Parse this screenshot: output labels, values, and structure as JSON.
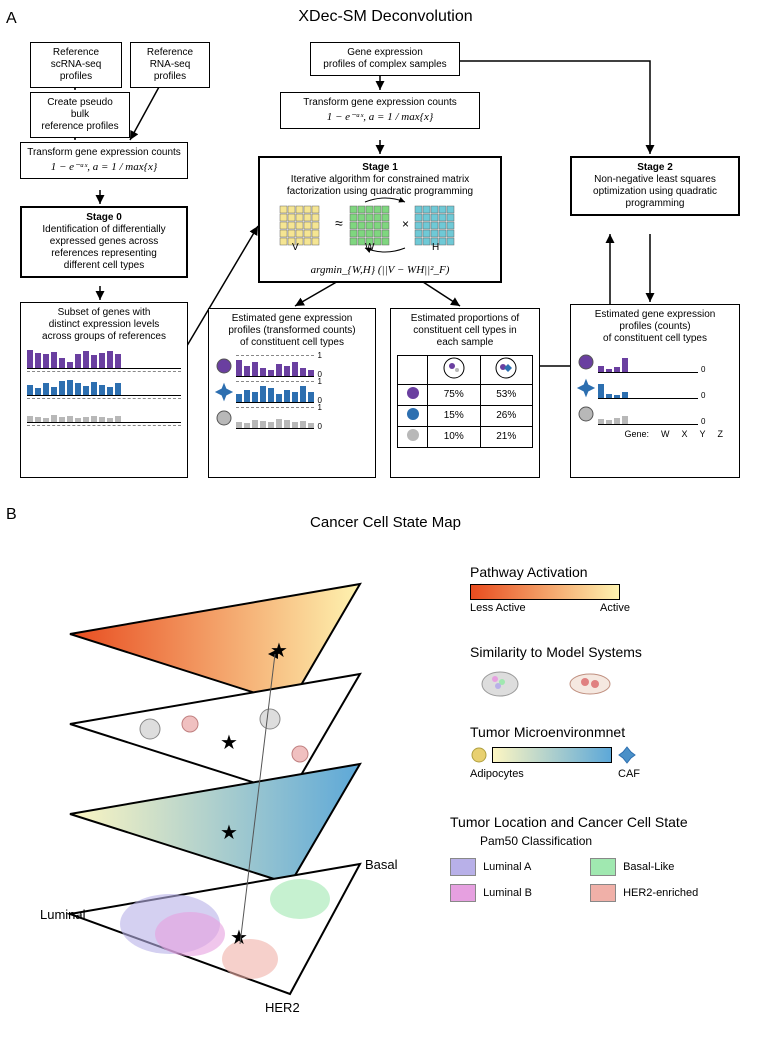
{
  "panelA_label": "A",
  "panelB_label": "B",
  "titleA": "XDec-SM Deconvolution",
  "titleB": "Cancer Cell State Map",
  "boxes": {
    "ref_scrna": "Reference\nscRNA-seq profiles",
    "create_pseudo": "Create pseudo bulk\nreference profiles",
    "ref_rna": "Reference\nRNA-seq profiles",
    "transform_left_title": "Transform gene expression counts",
    "transform_formula": "1 − e⁻ᵃˣ, a = 1 / max{x}",
    "stage0_title": "Stage 0",
    "stage0_body": "Identification of differentially\nexpressed genes across\nreferences representing\ndifferent cell types",
    "subset_title": "Subset of genes with\ndistinct expression levels\nacross groups of references",
    "complex_title": "Gene expression\nprofiles of complex samples",
    "transform_mid_title": "Transform gene expression counts",
    "stage1_title": "Stage 1",
    "stage1_body": "Iterative algorithm for constrained matrix\nfactorization using quadratic programming",
    "stage1_formula": "argmin_{W,H} (||V − WH||²_F)",
    "est_profiles_title": "Estimated gene expression\nprofiles (transformed counts)\nof constituent cell types",
    "est_props_title": "Estimated proportions of\nconstituent cell types in\neach sample",
    "stage2_title": "Stage 2",
    "stage2_body": "Non-negative least squares\noptimization using quadratic\nprogramming",
    "est_counts_title": "Estimated gene expression\nprofiles (counts)\nof constituent cell types",
    "gene_labels": [
      "W",
      "X",
      "Y",
      "Z"
    ]
  },
  "colors": {
    "purple": "#6a3fa0",
    "blue": "#2d6fb0",
    "gray": "#b8b8b8",
    "matrix_v": "#f5e592",
    "matrix_w": "#7fd67f",
    "matrix_h": "#6fc9d6",
    "pathway_grad_start": "#e84c1f",
    "pathway_grad_end": "#fef3b0",
    "tme_grad_start": "#fdf6c2",
    "tme_grad_end": "#5da8d8",
    "luminal_a": "#b8b0e8",
    "luminal_b": "#e6a0e0",
    "basal": "#a0e8b0",
    "her2": "#f0b0a8",
    "adipocyte": "#e8d070",
    "caf_blue": "#4a90c8"
  },
  "props_table": {
    "rows": [
      {
        "c": "#6a3fa0",
        "v1": "75%",
        "v2": "53%"
      },
      {
        "c": "#2d6fb0",
        "v1": "15%",
        "v2": "26%"
      },
      {
        "c": "#b8b8b8",
        "v1": "10%",
        "v2": "21%"
      }
    ]
  },
  "bar_sets": {
    "left_panel": {
      "purple": [
        18,
        15,
        14,
        16,
        10,
        6,
        14,
        17,
        13,
        15,
        17,
        14
      ],
      "blue": [
        10,
        7,
        12,
        8,
        14,
        15,
        12,
        9,
        13,
        10,
        8,
        12
      ],
      "gray": [
        6,
        5,
        4,
        7,
        5,
        6,
        4,
        5,
        6,
        5,
        4,
        6
      ]
    },
    "mid_profiles": {
      "purple": [
        16,
        10,
        14,
        8,
        6,
        12,
        10,
        14,
        8,
        6
      ],
      "blue": [
        8,
        12,
        10,
        16,
        14,
        8,
        12,
        10,
        16,
        10
      ],
      "gray": [
        6,
        5,
        8,
        7,
        6,
        9,
        8,
        6,
        7,
        5
      ]
    },
    "right_counts": {
      "purple": [
        6,
        3,
        5,
        14
      ],
      "blue": [
        14,
        4,
        3,
        6
      ],
      "gray": [
        5,
        4,
        6,
        8
      ]
    }
  },
  "panelB": {
    "labels": {
      "luminal": "Luminal",
      "basal": "Basal",
      "her2": "HER2",
      "pathway": "Pathway Activation",
      "less": "Less Active",
      "active": "Active",
      "similarity": "Similarity to Model Systems",
      "tme": "Tumor Microenvironmnet",
      "adipo": "Adipocytes",
      "caf": "CAF",
      "location": "Tumor Location and Cancer Cell State",
      "pam50": "Pam50 Classification",
      "lumA": "Luminal A",
      "lumB": "Luminal B",
      "basalL": "Basal-Like",
      "her2e": "HER2-enriched"
    }
  }
}
